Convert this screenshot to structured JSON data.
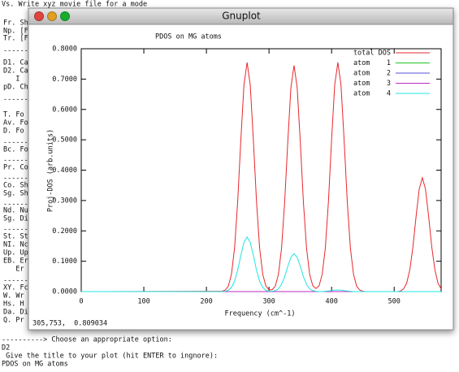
{
  "terminal": {
    "top_line": "Vs. Write xyz movie file for a mode",
    "menu_lines": [
      "Fr. Sh",
      "Np. [F",
      "Tr. [F",
      "-------",
      "D1. Ca",
      "D2. Ca",
      "   I",
      "pD. Ch",
      "-------",
      "T. Fo",
      "Av. Fo",
      "D. Fo",
      "-------",
      "Bc. Fo",
      "-------",
      "Pr. Co",
      "-------",
      "Co. Sh",
      "Sg. Sh",
      "-------",
      "Nd. Nu",
      "Sg. Di",
      "-------",
      "St. St",
      "NI. Nc",
      "Up. Up",
      "EB. Er",
      "   Er",
      "-------",
      "XY. Fc",
      "W. Wr",
      "Hs. H",
      "Da. Di",
      "Q. Pr"
    ],
    "bottom_lines": [
      "----------> Choose an appropriate option:",
      "D2",
      " Give the title to your plot (hit ENTER to ingnore):",
      "PDOS on MG atoms"
    ]
  },
  "window": {
    "title": "Gnuplot",
    "status": "305,753,  0.809034"
  },
  "chart_data": {
    "type": "line",
    "title": "PDOS on MG atoms",
    "x_label": "Frequency (cm^-1)",
    "y_label": "Proj-DOS (arb.units)",
    "x": [
      0,
      225,
      230,
      235,
      240,
      245,
      250,
      255,
      260,
      265,
      270,
      275,
      280,
      285,
      290,
      295,
      300,
      305,
      310,
      315,
      320,
      325,
      330,
      335,
      340,
      345,
      350,
      355,
      360,
      365,
      370,
      375,
      380,
      385,
      390,
      395,
      400,
      405,
      410,
      415,
      420,
      425,
      430,
      435,
      440,
      445,
      450,
      455,
      460,
      465,
      470,
      475,
      480,
      485,
      490,
      495,
      500,
      505,
      510,
      515,
      520,
      525,
      530,
      535,
      540,
      545,
      550,
      555,
      560,
      565,
      570,
      575
    ],
    "series": [
      {
        "name": "total DOS",
        "color": "#e8262b",
        "values": [
          0,
          0.001,
          0.005,
          0.018,
          0.057,
          0.144,
          0.298,
          0.5,
          0.681,
          0.755,
          0.681,
          0.5,
          0.298,
          0.144,
          0.057,
          0.018,
          0.006,
          0.006,
          0.018,
          0.056,
          0.142,
          0.294,
          0.493,
          0.672,
          0.745,
          0.672,
          0.493,
          0.294,
          0.142,
          0.056,
          0.019,
          0.01,
          0.019,
          0.057,
          0.144,
          0.298,
          0.5,
          0.681,
          0.755,
          0.681,
          0.5,
          0.298,
          0.144,
          0.057,
          0.018,
          0.005,
          0.001,
          0,
          0,
          0,
          0,
          0,
          0,
          0,
          0,
          0,
          0,
          0,
          0.002,
          0.009,
          0.028,
          0.072,
          0.148,
          0.248,
          0.338,
          0.375,
          0.338,
          0.248,
          0.148,
          0.072,
          0.028,
          0.009
        ]
      },
      {
        "name": "atom    1",
        "color": "#22c422",
        "values": [
          0,
          0,
          0,
          0,
          0,
          0,
          0,
          0,
          0,
          0,
          0,
          0,
          0,
          0,
          0,
          0,
          0,
          0,
          0,
          0,
          0,
          0,
          0,
          0,
          0,
          0,
          0,
          0,
          0,
          0,
          0,
          0,
          0,
          0,
          0,
          0,
          0,
          0,
          0,
          0,
          0,
          0,
          0,
          0,
          0,
          0,
          0,
          0,
          0,
          0,
          0,
          0,
          0,
          0,
          0,
          0,
          0,
          0,
          0,
          0,
          0,
          0,
          0,
          0,
          0,
          0,
          0,
          0,
          0,
          0,
          0,
          0
        ]
      },
      {
        "name": "atom    2",
        "color": "#5a4fd8",
        "values": [
          0,
          0,
          0,
          0,
          0,
          0,
          0,
          0,
          0,
          0,
          0,
          0,
          0,
          0,
          0,
          0,
          0,
          0,
          0,
          0,
          0,
          0,
          0,
          0,
          0,
          0,
          0,
          0,
          0,
          0,
          0,
          0,
          0,
          0,
          0,
          0,
          0,
          0,
          0,
          0,
          0,
          0,
          0,
          0,
          0,
          0,
          0,
          0,
          0,
          0,
          0,
          0,
          0,
          0,
          0,
          0,
          0,
          0,
          0,
          0,
          0,
          0,
          0,
          0,
          0,
          0,
          0,
          0,
          0,
          0,
          0,
          0
        ]
      },
      {
        "name": "atom    3",
        "color": "#c02cc0",
        "values": [
          0,
          0,
          0,
          0,
          0,
          0,
          0,
          0,
          0,
          0,
          0,
          0,
          0,
          0,
          0,
          0,
          0,
          0,
          0,
          0,
          0,
          0,
          0,
          0,
          0,
          0,
          0,
          0,
          0,
          0,
          0,
          0,
          0,
          0,
          0,
          0,
          0,
          0,
          0,
          0,
          0,
          0,
          0,
          0,
          0,
          0,
          0,
          0,
          0,
          0,
          0,
          0,
          0,
          0,
          0,
          0,
          0,
          0,
          0,
          0,
          0,
          0,
          0,
          0,
          0,
          0,
          0,
          0,
          0,
          0,
          0,
          0
        ]
      },
      {
        "name": "atom    4",
        "color": "#22e4e4",
        "values": [
          0,
          0,
          0.001,
          0.004,
          0.014,
          0.034,
          0.071,
          0.119,
          0.162,
          0.18,
          0.162,
          0.119,
          0.071,
          0.034,
          0.014,
          0.004,
          0.001,
          0.001,
          0.003,
          0.009,
          0.024,
          0.049,
          0.083,
          0.113,
          0.125,
          0.113,
          0.083,
          0.049,
          0.024,
          0.009,
          0.003,
          0.001,
          0,
          0,
          0.001,
          0.002,
          0.003,
          0.005,
          0.005,
          0.005,
          0.003,
          0.002,
          0.001,
          0,
          0,
          0,
          0,
          0,
          0,
          0,
          0,
          0,
          0,
          0,
          0,
          0,
          0,
          0,
          0,
          0,
          0,
          0,
          0,
          0,
          0,
          0,
          0,
          0,
          0,
          0,
          0,
          0
        ]
      }
    ],
    "xlim": [
      0,
      575
    ],
    "xticks": [
      0,
      100,
      200,
      300,
      400,
      500
    ],
    "ylim": [
      0,
      0.8
    ],
    "yticks": [
      {
        "value": 0,
        "label": "0.0000"
      },
      {
        "value": 0.1,
        "label": "0.1000"
      },
      {
        "value": 0.2,
        "label": "0.2000"
      },
      {
        "value": 0.3,
        "label": "0.3000"
      },
      {
        "value": 0.4,
        "label": "0.4000"
      },
      {
        "value": 0.5,
        "label": "0.5000"
      },
      {
        "value": 0.6,
        "label": "0.6000"
      },
      {
        "value": 0.7,
        "label": "0.7000"
      },
      {
        "value": 0.8,
        "label": "0.8000"
      }
    ],
    "grid": false,
    "legend": "top-right"
  }
}
